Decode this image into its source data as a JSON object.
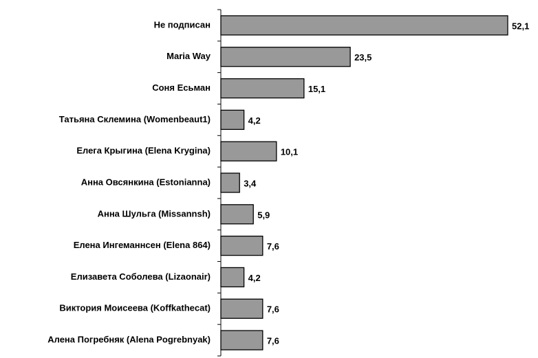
{
  "chart_data": {
    "type": "bar",
    "orientation": "horizontal",
    "categories": [
      "Не подписан",
      "Maria Way",
      "Соня Есьман",
      "Татьяна Склемина (Womenbeaut1)",
      "Елега Крыгина (Elena Krygina)",
      "Анна Овсянкина (Estonianna)",
      "Анна Шульга (Missannsh)",
      "Елена Ингеманнсен (Elena 864)",
      "Елизавета Соболева (Lizaonair)",
      "Виктория Моисеева (Koffkathecat)",
      "Алена Погребняк (Alena Pogrebnyak)"
    ],
    "values": [
      52.1,
      23.5,
      15.1,
      4.2,
      10.1,
      3.4,
      5.9,
      7.6,
      4.2,
      7.6,
      7.6
    ],
    "value_labels": [
      "52,1",
      "23,5",
      "15,1",
      "4,2",
      "10,1",
      "3,4",
      "5,9",
      "7,6",
      "4,2",
      "7,6",
      "7,6"
    ],
    "color": "#999999"
  }
}
